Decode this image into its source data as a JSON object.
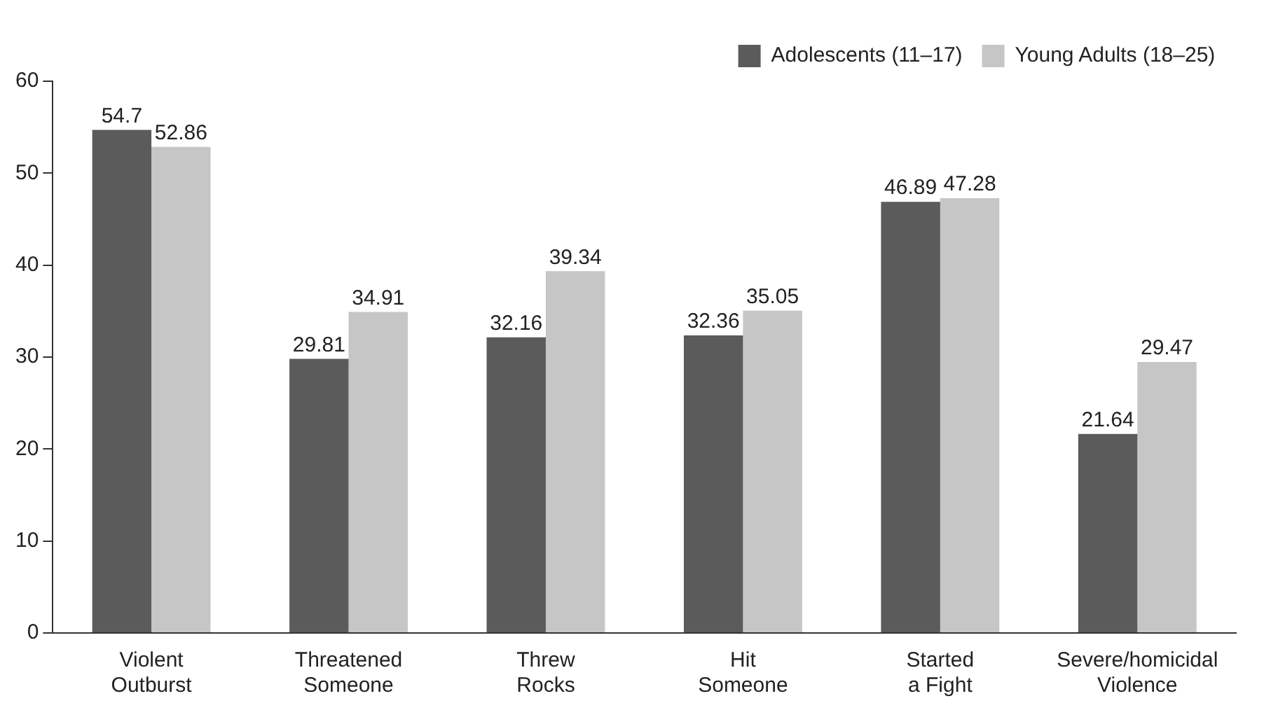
{
  "chart_data": {
    "type": "bar",
    "categories": [
      "Violent Outburst",
      "Threatened Someone",
      "Threw Rocks",
      "Hit Someone",
      "Started a Fight",
      "Severe/homicidal Violence"
    ],
    "series": [
      {
        "name": "Adolescents (11–17)",
        "color": "#5b5b5b",
        "values": [
          54.7,
          29.81,
          32.16,
          32.36,
          46.89,
          21.64
        ]
      },
      {
        "name": "Young Adults (18–25)",
        "color": "#c6c6c6",
        "values": [
          52.86,
          34.91,
          39.34,
          35.05,
          47.28,
          29.47
        ]
      }
    ],
    "ylim": [
      0,
      60
    ],
    "yticks": [
      0,
      10,
      20,
      30,
      40,
      50,
      60
    ],
    "grid": false,
    "legend": "top right",
    "data_labels": true
  }
}
